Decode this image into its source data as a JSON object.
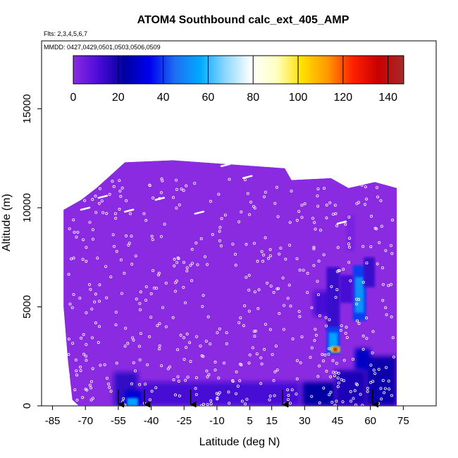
{
  "colors": {
    "background": "#ffffff",
    "frame": "#000000",
    "field_base": "#8a2be2",
    "marker": "#ffffff",
    "palette": [
      "#8a2be2",
      "#4b0bd8",
      "#0000a0",
      "#0000ee",
      "#1e6ff2",
      "#00aaff",
      "#8fd8ff",
      "#ffffff",
      "#ffffc0",
      "#ffe000",
      "#ff9800",
      "#ff2000",
      "#c80000",
      "#a52a2a"
    ]
  },
  "chart_data": {
    "type": "heatmap",
    "title": "ATOM4 Southbound calc_ext_405_AMP",
    "subtitle": "Flts: 2,3,4,5,6,7",
    "date_label": "MMDD: 0427,0429,0501,0503,0506,0509",
    "xlabel": "Latitude (deg N)",
    "ylabel": "Altitude (m)",
    "xlim": [
      -90,
      90
    ],
    "ylim": [
      0,
      18000
    ],
    "x_ticks": [
      -85,
      -70,
      -55,
      -40,
      -25,
      -10,
      5,
      15,
      30,
      45,
      60,
      75
    ],
    "x_tick_labels": [
      "-85",
      "-70",
      "-55",
      "-40",
      "-25",
      "-10",
      "5",
      "15",
      "30",
      "45",
      "60",
      "75"
    ],
    "y_ticks": [
      0,
      5000,
      10000,
      15000
    ],
    "y_tick_labels": [
      "0",
      "5000",
      "10000",
      "15000"
    ],
    "colorbar": {
      "range": [
        0,
        147
      ],
      "ticks": [
        0,
        20,
        40,
        60,
        80,
        100,
        120,
        140
      ],
      "tick_labels": [
        "0",
        "20",
        "40",
        "60",
        "80",
        "100",
        "120",
        "140"
      ]
    },
    "data_extent": {
      "lat_range": [
        -80,
        72
      ],
      "top_altitude": [
        {
          "lat": -80,
          "alt": 9900
        },
        {
          "lat": -72,
          "alt": 10400
        },
        {
          "lat": -65,
          "alt": 11000
        },
        {
          "lat": -58,
          "alt": 11700
        },
        {
          "lat": -52,
          "alt": 12300
        },
        {
          "lat": -30,
          "alt": 12400
        },
        {
          "lat": 21,
          "alt": 12000
        },
        {
          "lat": 24,
          "alt": 11400
        },
        {
          "lat": 42,
          "alt": 11500
        },
        {
          "lat": 50,
          "alt": 11000
        },
        {
          "lat": 62,
          "alt": 11300
        },
        {
          "lat": 72,
          "alt": 11000
        }
      ],
      "bottom_altitude": [
        {
          "lat": -80,
          "alt": 5000
        },
        {
          "lat": -78,
          "alt": 2300
        },
        {
          "lat": -76,
          "alt": 300
        },
        {
          "lat": -73,
          "alt": 0
        },
        {
          "lat": 72,
          "alt": 0
        }
      ]
    },
    "features": [
      {
        "lat": [
          -57,
          -46
        ],
        "alt": [
          0,
          1700
        ],
        "value": 15
      },
      {
        "lat": [
          -45,
          28
        ],
        "alt": [
          0,
          1200
        ],
        "value": 12
      },
      {
        "lat": [
          -52,
          -44
        ],
        "alt": [
          0,
          800
        ],
        "value": 30
      },
      {
        "lat": [
          -51,
          -46
        ],
        "alt": [
          0,
          400
        ],
        "value": 55
      },
      {
        "lat": [
          29,
          44
        ],
        "alt": [
          0,
          1200
        ],
        "value": 22
      },
      {
        "lat": [
          44,
          58
        ],
        "alt": [
          0,
          1800
        ],
        "value": 18
      },
      {
        "lat": [
          58,
          72
        ],
        "alt": [
          0,
          2500
        ],
        "value": 20
      },
      {
        "lat": [
          34,
          42
        ],
        "alt": [
          4500,
          5800
        ],
        "value": 12
      },
      {
        "lat": [
          40,
          46
        ],
        "alt": [
          3800,
          7000
        ],
        "value": 14
      },
      {
        "lat": [
          40,
          46
        ],
        "alt": [
          2600,
          4000
        ],
        "value": 40
      },
      {
        "lat": [
          41,
          45
        ],
        "alt": [
          2800,
          3700
        ],
        "value": 55
      },
      {
        "lat": [
          42,
          46
        ],
        "alt": [
          2700,
          3000
        ],
        "value": 100
      },
      {
        "lat": [
          43,
          45
        ],
        "alt": [
          2750,
          2950
        ],
        "value": 140
      },
      {
        "lat": [
          52,
          58
        ],
        "alt": [
          4300,
          7100
        ],
        "value": 40
      },
      {
        "lat": [
          53,
          57
        ],
        "alt": [
          4700,
          6500
        ],
        "value": 52
      },
      {
        "lat": [
          46,
          52
        ],
        "alt": [
          5200,
          6600
        ],
        "value": 12
      },
      {
        "lat": [
          57,
          62
        ],
        "alt": [
          6000,
          7500
        ],
        "value": 14
      },
      {
        "lat": [
          53,
          60
        ],
        "alt": [
          1800,
          2900
        ],
        "value": 28
      },
      {
        "lat": [
          49,
          53
        ],
        "alt": [
          7800,
          9600
        ],
        "value": 3
      }
    ],
    "profile_markers_lat": [
      -55,
      -43,
      -22,
      20,
      61
    ]
  }
}
